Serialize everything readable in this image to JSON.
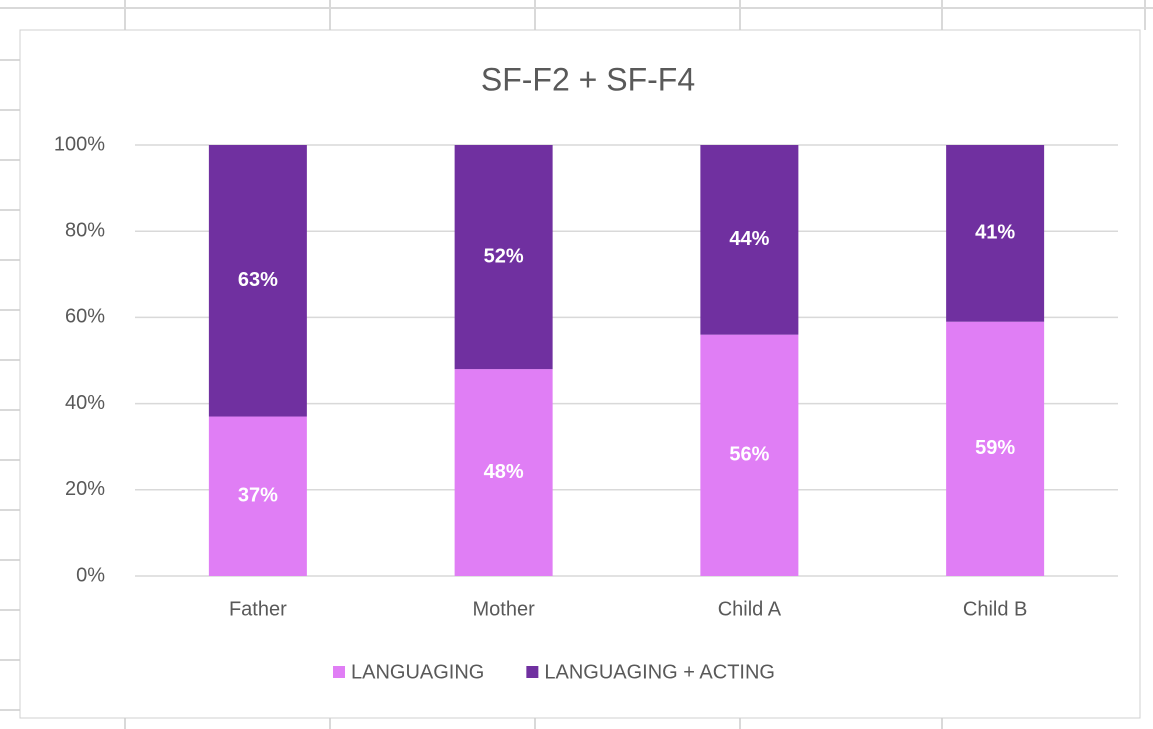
{
  "chart_data": {
    "type": "stacked_bar",
    "title": "SF-F2 + SF-F4",
    "categories": [
      "Father",
      "Mother",
      "Child A",
      "Child B"
    ],
    "series": [
      {
        "name": "LANGUAGING",
        "color": "#e07ef5",
        "values": [
          37,
          48,
          56,
          59
        ],
        "value_labels": [
          "37%",
          "48%",
          "56%",
          "59%"
        ]
      },
      {
        "name": "LANGUAGING + ACTING",
        "color": "#7030a0",
        "values": [
          63,
          52,
          44,
          41
        ],
        "value_labels": [
          "63%",
          "52%",
          "44%",
          "41%"
        ]
      }
    ],
    "ylim": [
      0,
      100
    ],
    "yticks": [
      {
        "value": 0,
        "label": "0%"
      },
      {
        "value": 20,
        "label": "20%"
      },
      {
        "value": 40,
        "label": "40%"
      },
      {
        "value": 60,
        "label": "60%"
      },
      {
        "value": 80,
        "label": "80%"
      },
      {
        "value": 100,
        "label": "100%"
      }
    ],
    "grid": true,
    "legend": "bottom"
  }
}
